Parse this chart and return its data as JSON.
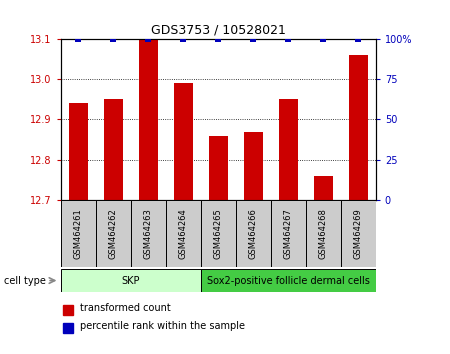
{
  "title": "GDS3753 / 10528021",
  "samples": [
    "GSM464261",
    "GSM464262",
    "GSM464263",
    "GSM464264",
    "GSM464265",
    "GSM464266",
    "GSM464267",
    "GSM464268",
    "GSM464269"
  ],
  "transformed_counts": [
    12.94,
    12.95,
    13.1,
    12.99,
    12.86,
    12.87,
    12.95,
    12.76,
    13.06
  ],
  "percentile_ranks": [
    100,
    100,
    100,
    100,
    100,
    100,
    100,
    100,
    100
  ],
  "ylim_left": [
    12.7,
    13.1
  ],
  "ylim_right": [
    0,
    100
  ],
  "yticks_left": [
    12.7,
    12.8,
    12.9,
    13.0,
    13.1
  ],
  "yticks_right": [
    0,
    25,
    50,
    75,
    100
  ],
  "ytick_labels_right": [
    "0",
    "25",
    "50",
    "75",
    "100%"
  ],
  "bar_color": "#cc0000",
  "dot_color": "#0000bb",
  "cell_types": [
    {
      "label": "SKP",
      "start": 0,
      "end": 3,
      "color": "#ccffcc"
    },
    {
      "label": "Sox2-positive follicle dermal cells",
      "start": 4,
      "end": 8,
      "color": "#44cc44"
    }
  ],
  "legend_bar_label": "transformed count",
  "legend_dot_label": "percentile rank within the sample",
  "cell_type_label": "cell type",
  "sample_box_color": "#cccccc",
  "title_fontsize": 9,
  "tick_fontsize": 7,
  "sample_fontsize": 6,
  "celltype_fontsize": 7,
  "legend_fontsize": 7
}
